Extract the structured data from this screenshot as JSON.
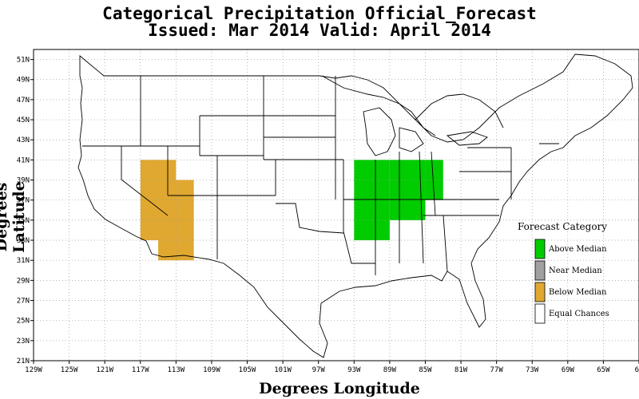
{
  "title": {
    "line1": "Categorical Precipitation Official_Forecast",
    "line2": "Issued: Mar 2014 Valid: April 2014"
  },
  "axes": {
    "xlabel": "Degrees Longitude",
    "ylabel": "Degrees Latitude",
    "x_ticks": [
      "129W",
      "125W",
      "121W",
      "117W",
      "113W",
      "109W",
      "105W",
      "101W",
      "97W",
      "93W",
      "89W",
      "85W",
      "81W",
      "77W",
      "73W",
      "69W",
      "65W",
      "61"
    ],
    "y_ticks": [
      "51N",
      "49N",
      "47N",
      "45N",
      "43N",
      "41N",
      "39N",
      "37N",
      "35N",
      "33N",
      "31N",
      "29N",
      "27N",
      "25N",
      "23N",
      "21N"
    ],
    "xlim": [
      -129,
      -61
    ],
    "ylim": [
      21,
      52
    ],
    "grid": true
  },
  "legend": {
    "title": "Forecast Category",
    "items": [
      {
        "label": "Above Median",
        "color": "#00cc00"
      },
      {
        "label": "Near Median",
        "color": "#a0a0a0"
      },
      {
        "label": "Below Median",
        "color": "#e0a830"
      },
      {
        "label": "Equal Chances",
        "color": "#ffffff"
      }
    ]
  },
  "regions": [
    {
      "category": "Below Median",
      "color": "#e0a830",
      "lon": [
        -117,
        -113
      ],
      "lat": [
        33,
        41
      ]
    },
    {
      "category": "Below Median",
      "color": "#e0a830",
      "lon": [
        -115,
        -111
      ],
      "lat": [
        31,
        39
      ]
    },
    {
      "category": "Above Median",
      "color": "#00cc00",
      "lon": [
        -93,
        -89
      ],
      "lat": [
        33,
        41
      ]
    },
    {
      "category": "Above Median",
      "color": "#00cc00",
      "lon": [
        -89,
        -85
      ],
      "lat": [
        35,
        41
      ]
    },
    {
      "category": "Above Median",
      "color": "#00cc00",
      "lon": [
        -85,
        -83
      ],
      "lat": [
        37,
        41
      ]
    }
  ]
}
